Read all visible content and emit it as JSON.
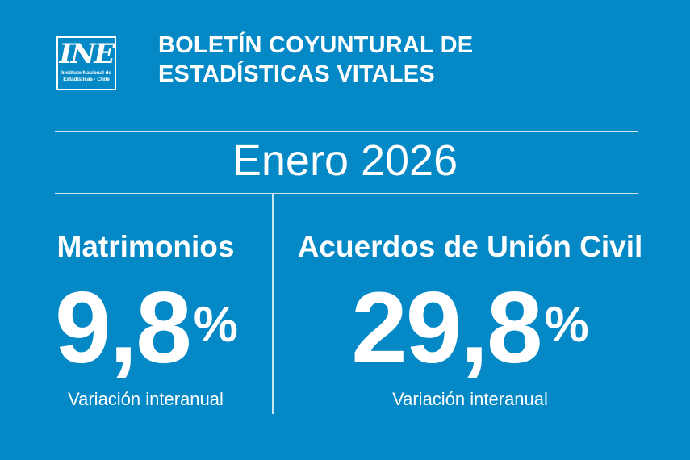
{
  "colors": {
    "background": "#0489C6",
    "text": "#FFFFFF",
    "divider_light_blue": "#CDE8F5"
  },
  "logo": {
    "acronym": "INE",
    "subtitle_line1": "Instituto Nacional de",
    "subtitle_line2": "Estadísticas · Chile"
  },
  "header": {
    "title_line1": "BOLETÍN COYUNTURAL DE",
    "title_line2": "ESTADÍSTICAS VITALES"
  },
  "period": "Enero 2026",
  "stats": [
    {
      "label": "Matrimonios",
      "value": "9,8",
      "unit": "%",
      "caption": "Variación interanual"
    },
    {
      "label": "Acuerdos de Unión Civil",
      "value": "29,8",
      "unit": "%",
      "caption": "Variación interanual"
    }
  ],
  "chart_data": {
    "type": "table",
    "title": "Boletín Coyuntural de Estadísticas Vitales",
    "subtitle": "Enero 2026",
    "categories": [
      "Matrimonios",
      "Acuerdos de Unión Civil"
    ],
    "values": [
      9.8,
      29.8
    ],
    "ylabel": "Variación interanual (%)",
    "legend_position": "none",
    "grid": false
  }
}
